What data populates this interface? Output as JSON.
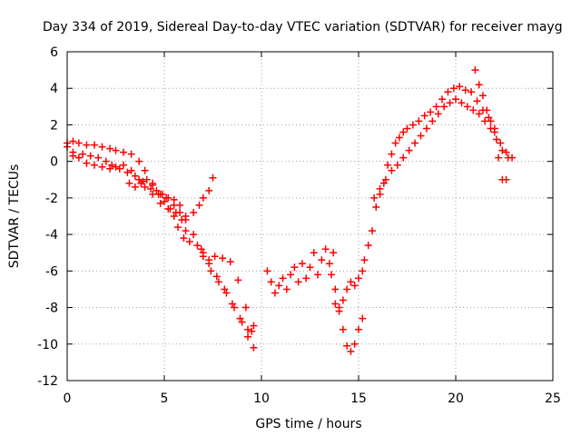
{
  "chart_data": {
    "type": "scatter",
    "title": "Day 334 of 2019, Sidereal Day-to-day VTEC variation (SDTVAR) for receiver mayg",
    "xlabel": "GPS time / hours",
    "ylabel": "SDTVAR / TECUs",
    "xlim": [
      0,
      25
    ],
    "ylim": [
      -12,
      6
    ],
    "xticks": [
      0,
      5,
      10,
      15,
      20,
      25
    ],
    "yticks": [
      -12,
      -10,
      -8,
      -6,
      -4,
      -2,
      0,
      2,
      4,
      6
    ],
    "grid": true,
    "marker": "+",
    "color": "#ff0000",
    "series": [
      {
        "name": "SDTVAR",
        "x": [
          0.0,
          0.3,
          0.6,
          1.0,
          1.4,
          1.8,
          2.2,
          2.5,
          2.9,
          3.3,
          3.7,
          4.0,
          4.4,
          4.8,
          5.0,
          5.3,
          5.6,
          5.9,
          6.1,
          6.5,
          6.8,
          7.0,
          7.3,
          7.5,
          7.0,
          7.3,
          7.6,
          8.0,
          8.4,
          8.8,
          9.2,
          9.5,
          0.0,
          0.3,
          0.6,
          1.0,
          1.4,
          1.8,
          2.2,
          2.5,
          2.9,
          3.3,
          3.7,
          4.0,
          4.4,
          4.8,
          5.2,
          5.5,
          5.7,
          6.0,
          6.3,
          6.7,
          7.0,
          7.4,
          7.8,
          8.2,
          8.6,
          9.0,
          9.3,
          9.6,
          0.3,
          0.8,
          1.2,
          1.6,
          2.0,
          2.3,
          2.7,
          3.1,
          3.5,
          3.9,
          4.3,
          4.7,
          5.1,
          5.5,
          5.8,
          6.1,
          6.5,
          6.9,
          7.3,
          7.7,
          8.1,
          8.5,
          8.9,
          9.3,
          9.6,
          3.2,
          3.5,
          3.8,
          4.1,
          4.4,
          4.6,
          4.9,
          5.2,
          5.5,
          5.8,
          6.1,
          10.3,
          10.5,
          10.7,
          10.9,
          11.1,
          11.3,
          11.5,
          11.7,
          11.9,
          12.1,
          12.3,
          12.5,
          12.7,
          12.9,
          13.1,
          13.3,
          13.5,
          13.7,
          13.6,
          13.8,
          14.0,
          14.2,
          14.4,
          14.6,
          14.8,
          15.0,
          15.2,
          13.8,
          14.0,
          14.2,
          14.4,
          14.6,
          14.8,
          15.0,
          15.2,
          15.3,
          15.5,
          15.7,
          15.9,
          16.1,
          16.3,
          16.5,
          16.7,
          16.9,
          17.1,
          17.3,
          17.5,
          17.8,
          18.1,
          18.4,
          18.7,
          19.0,
          19.3,
          19.6,
          19.9,
          20.2,
          20.5,
          20.8,
          21.1,
          21.4,
          21.7,
          22.0,
          22.3,
          22.6,
          22.9,
          15.8,
          16.1,
          16.4,
          16.7,
          17.0,
          17.3,
          17.6,
          17.9,
          18.2,
          18.5,
          18.8,
          19.1,
          19.4,
          19.7,
          20.0,
          20.3,
          20.6,
          20.9,
          21.2,
          21.5,
          21.8,
          22.1,
          22.4,
          22.7,
          21.0,
          21.2,
          21.4,
          21.6,
          21.8,
          22.0,
          22.2,
          22.4,
          22.6
        ],
        "y": [
          1.0,
          1.1,
          1.0,
          0.9,
          0.9,
          0.8,
          0.7,
          0.6,
          0.5,
          0.4,
          0.0,
          -0.5,
          -1.2,
          -1.8,
          -2.2,
          -2.6,
          -2.8,
          -3.2,
          -3.8,
          -2.8,
          -2.4,
          -2.0,
          -1.6,
          -0.9,
          -5.0,
          -5.4,
          -5.2,
          -5.3,
          -5.5,
          -6.5,
          -8.0,
          -9.3,
          0.8,
          0.5,
          0.2,
          -0.1,
          -0.2,
          -0.3,
          -0.4,
          -0.3,
          -0.2,
          -0.5,
          -1.0,
          -1.4,
          -1.8,
          -2.3,
          -2.6,
          -3.0,
          -3.6,
          -4.2,
          -4.4,
          -4.6,
          -5.2,
          -6.0,
          -6.6,
          -7.2,
          -8.0,
          -8.8,
          -9.6,
          -10.2,
          0.3,
          0.4,
          0.3,
          0.2,
          0.0,
          -0.2,
          -0.4,
          -0.6,
          -0.8,
          -1.1,
          -1.5,
          -1.8,
          -2.0,
          -2.1,
          -2.4,
          -3.0,
          -4.0,
          -4.8,
          -5.6,
          -6.3,
          -7.0,
          -7.8,
          -8.6,
          -9.2,
          -9.0,
          -1.2,
          -1.4,
          -1.2,
          -1.0,
          -1.3,
          -1.6,
          -1.8,
          -2.0,
          -2.4,
          -2.8,
          -3.2,
          -6.0,
          -6.6,
          -7.2,
          -6.8,
          -6.4,
          -7.0,
          -6.2,
          -5.8,
          -6.6,
          -5.6,
          -6.4,
          -5.8,
          -5.0,
          -6.2,
          -5.4,
          -4.8,
          -5.6,
          -5.0,
          -6.2,
          -7.0,
          -8.0,
          -9.2,
          -10.1,
          -10.4,
          -10.0,
          -9.2,
          -8.6,
          -7.8,
          -8.2,
          -7.6,
          -7.0,
          -6.6,
          -6.8,
          -6.4,
          -6.0,
          -5.4,
          -4.6,
          -3.8,
          -2.5,
          -1.8,
          -1.2,
          -0.2,
          0.4,
          1.0,
          1.3,
          1.6,
          1.8,
          2.0,
          2.2,
          2.5,
          2.7,
          3.0,
          3.4,
          3.8,
          4.0,
          4.1,
          3.9,
          3.8,
          3.3,
          2.8,
          2.4,
          1.8,
          1.0,
          0.5,
          0.2,
          -2.0,
          -1.5,
          -1.0,
          -0.5,
          -0.2,
          0.2,
          0.6,
          1.0,
          1.4,
          1.8,
          2.2,
          2.6,
          3.0,
          3.2,
          3.4,
          3.2,
          3.0,
          2.8,
          2.6,
          2.2,
          1.8,
          1.2,
          0.6,
          0.2,
          5.0,
          4.2,
          3.6,
          2.8,
          2.2,
          1.6,
          0.2,
          -1.0,
          -1.0
        ]
      }
    ]
  }
}
